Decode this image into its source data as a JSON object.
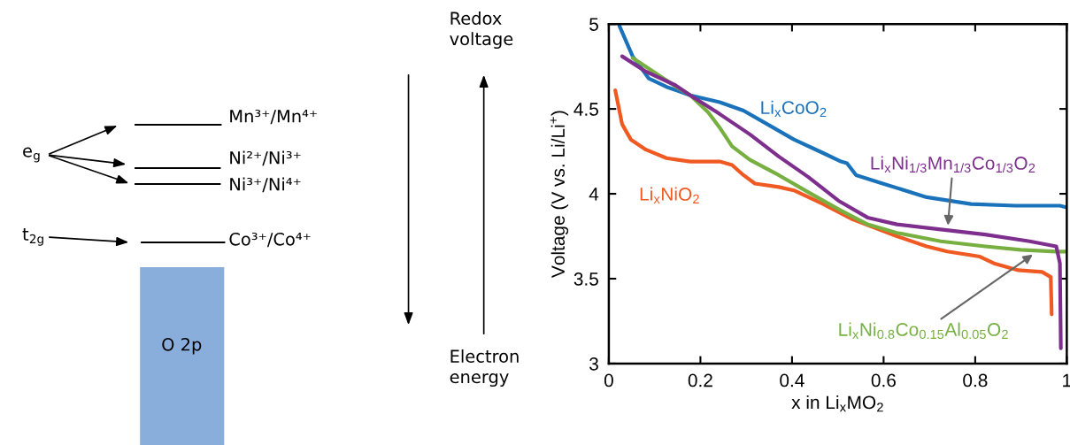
{
  "chart_data": [
    {
      "type": "other",
      "annotations": [
        "e$_{g}$",
        "t$_{2g}$",
        "Mn³⁺/Mn⁴⁺",
        "Ni²⁺/Ni³⁺",
        "Ni³⁺/Ni⁴⁺",
        "Co³⁺/Co⁴⁺",
        "O 2p",
        "Redox\nvoltage",
        "Electron\nenergy"
      ]
    },
    {
      "type": "line",
      "xlabel": "x in Li$_{x}$MO$_{2}$",
      "ylabel": "Voltage (V vs. Li/Li$^{+}$)",
      "xlim": [
        0,
        1
      ],
      "ylim": [
        3,
        5
      ],
      "xticks": [
        0,
        0.2,
        0.4,
        0.6,
        0.8,
        1
      ],
      "yticks": [
        3,
        3.5,
        4,
        4.5,
        5
      ],
      "grid": false,
      "legend": false,
      "marker": "none",
      "line_style": "solid",
      "series": [
        {
          "name": "Li$_{x}$CoO$_{2}$",
          "color": "#1a72bb",
          "x": [
            0.023,
            0.052,
            0.087,
            0.126,
            0.178,
            0.242,
            0.294,
            0.346,
            0.404,
            0.468,
            0.507,
            0.52,
            0.54,
            0.598,
            0.694,
            0.791,
            0.888,
            0.985,
            1.0
          ],
          "values": [
            4.99,
            4.81,
            4.68,
            4.63,
            4.58,
            4.54,
            4.49,
            4.41,
            4.32,
            4.24,
            4.19,
            4.18,
            4.11,
            4.06,
            3.98,
            3.94,
            3.93,
            3.93,
            3.92
          ]
        },
        {
          "name": "Li$_{x}$NiO$_{2}$",
          "color": "#f05a22",
          "x": [
            0.014,
            0.029,
            0.048,
            0.081,
            0.126,
            0.178,
            0.242,
            0.269,
            0.294,
            0.319,
            0.371,
            0.404,
            0.468,
            0.532,
            0.629,
            0.694,
            0.739,
            0.81,
            0.841,
            0.894,
            0.946,
            0.965,
            0.967
          ],
          "values": [
            4.61,
            4.41,
            4.32,
            4.26,
            4.21,
            4.19,
            4.19,
            4.17,
            4.11,
            4.06,
            4.04,
            4.02,
            3.94,
            3.85,
            3.75,
            3.69,
            3.66,
            3.63,
            3.59,
            3.55,
            3.54,
            3.51,
            3.29
          ]
        },
        {
          "name": "Li$_{x}$Ni$_{0.8}$Co$_{0.15}$Al$_{0.05}$O$_{2}$",
          "color": "#77b041",
          "x": [
            0.052,
            0.114,
            0.153,
            0.178,
            0.217,
            0.242,
            0.269,
            0.308,
            0.371,
            0.435,
            0.501,
            0.565,
            0.629,
            0.725,
            0.822,
            0.899,
            0.977,
            1.0
          ],
          "values": [
            4.8,
            4.69,
            4.62,
            4.58,
            4.48,
            4.39,
            4.28,
            4.2,
            4.11,
            4.01,
            3.91,
            3.82,
            3.77,
            3.72,
            3.69,
            3.67,
            3.66,
            3.66
          ]
        },
        {
          "name": "Li$_{x}$Ni$_{1/3}$Mn$_{1/3}$Co$_{1/3}$O$_{2}$",
          "color": "#7e2f8e",
          "x": [
            0.029,
            0.081,
            0.145,
            0.178,
            0.242,
            0.308,
            0.371,
            0.435,
            0.501,
            0.565,
            0.629,
            0.725,
            0.822,
            0.919,
            0.977,
            0.985,
            0.987
          ],
          "values": [
            4.81,
            4.72,
            4.64,
            4.58,
            4.47,
            4.35,
            4.22,
            4.1,
            3.96,
            3.86,
            3.82,
            3.79,
            3.76,
            3.72,
            3.69,
            3.59,
            3.09
          ]
        }
      ]
    }
  ]
}
